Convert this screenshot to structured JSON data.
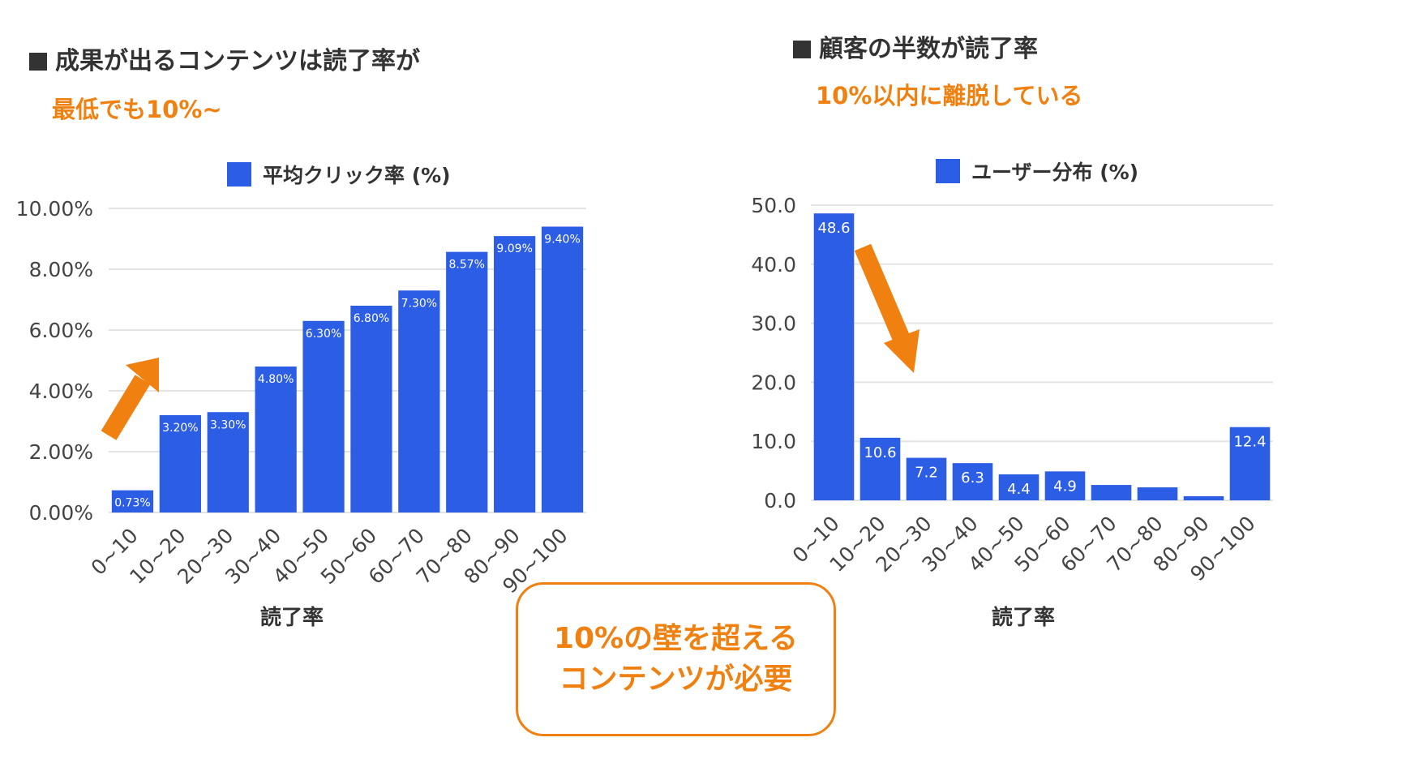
{
  "colors": {
    "accent": "#f08010",
    "bar": "#2c5de5",
    "heading": "#333333",
    "axis": "#444444",
    "grid": "#e4e4e4"
  },
  "left_panel": {
    "heading": "成果が出るコンテンツは読了率が",
    "subheading": "最低でも10%~",
    "arrow_icon": "arrow-up-right-icon"
  },
  "right_panel": {
    "heading": "顧客の半数が読了率",
    "subheading": "10%以内に離脱している",
    "arrow_icon": "arrow-down-right-icon"
  },
  "callout": {
    "line1": "10%の壁を超える",
    "line2": "コンテンツが必要"
  },
  "chart_data": [
    {
      "type": "bar",
      "title": "",
      "legend": "平均クリック率 (%)",
      "legend_position": "top",
      "xlabel": "読了率",
      "ylabel": "",
      "categories": [
        "0~10",
        "10~20",
        "20~30",
        "30~40",
        "40~50",
        "50~60",
        "60~70",
        "70~80",
        "80~90",
        "90~100"
      ],
      "values": [
        0.73,
        3.2,
        3.3,
        4.8,
        6.3,
        6.8,
        7.3,
        8.57,
        9.09,
        9.4
      ],
      "value_labels": [
        "0.73%",
        "3.20%",
        "3.30%",
        "4.80%",
        "6.30%",
        "6.80%",
        "7.30%",
        "8.57%",
        "9.09%",
        "9.40%"
      ],
      "yticks": [
        0,
        2,
        4,
        6,
        8,
        10
      ],
      "ytick_labels": [
        "0.00%",
        "2.00%",
        "4.00%",
        "6.00%",
        "8.00%",
        "10.00%"
      ],
      "ylim": [
        0,
        10
      ],
      "grid": true
    },
    {
      "type": "bar",
      "title": "",
      "legend": "ユーザー分布 (%)",
      "legend_position": "top",
      "xlabel": "読了率",
      "ylabel": "",
      "categories": [
        "0~10",
        "10~20",
        "20~30",
        "30~40",
        "40~50",
        "50~60",
        "60~70",
        "70~80",
        "80~90",
        "90~100"
      ],
      "values": [
        48.6,
        10.6,
        7.2,
        6.3,
        4.4,
        4.9,
        2.6,
        2.2,
        0.7,
        12.4
      ],
      "value_labels": [
        "48.6",
        "10.6",
        "7.2",
        "6.3",
        "4.4",
        "4.9",
        "",
        "",
        "",
        "12.4"
      ],
      "yticks": [
        0,
        10,
        20,
        30,
        40,
        50
      ],
      "ytick_labels": [
        "0.0",
        "10.0",
        "20.0",
        "30.0",
        "40.0",
        "50.0"
      ],
      "ylim": [
        0,
        50
      ],
      "grid": true
    }
  ]
}
